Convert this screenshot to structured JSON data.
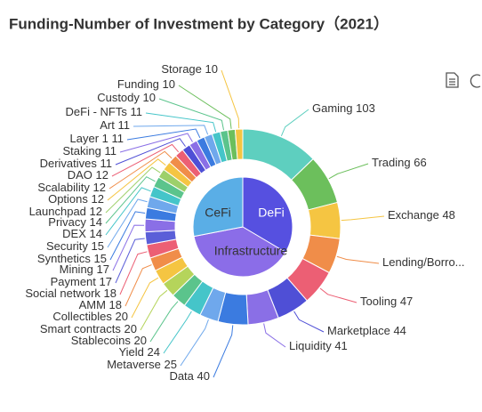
{
  "chart_data": [
    {
      "type": "donut",
      "title": "Funding-Number of Investment by Category（2021）",
      "categories": [
        "Gaming",
        "Trading",
        "Exchange",
        "Lending/Borro...",
        "Tooling",
        "Marketplace",
        "Liquidity",
        "Data",
        "Metaverse",
        "Yield",
        "Stablecoins",
        "Smart contracts",
        "Collectibles",
        "AMM",
        "Social network",
        "Payment",
        "Mining",
        "Synthetics",
        "Security",
        "DEX",
        "Privacy",
        "Launchpad",
        "Options",
        "Scalability",
        "DAO",
        "Derivatives",
        "Staking",
        "Layer 1",
        "Art",
        "DeFi - NFTs",
        "Custody",
        "Funding",
        "Storage"
      ],
      "values": [
        103,
        66,
        48,
        47,
        47,
        44,
        41,
        40,
        25,
        24,
        20,
        20,
        20,
        18,
        18,
        17,
        17,
        15,
        15,
        14,
        14,
        12,
        12,
        12,
        12,
        11,
        11,
        11,
        11,
        11,
        10,
        10,
        10
      ],
      "value_labels": [
        "103",
        "66",
        "48",
        null,
        "47",
        "44",
        "41",
        "40",
        "25",
        "24",
        "20",
        "20",
        "20",
        "18",
        "18",
        "17",
        "17",
        "15",
        "15",
        "14",
        "14",
        "12",
        "12",
        "12",
        "12",
        "11",
        "11",
        "11",
        "11",
        "11",
        "10",
        "10",
        "10"
      ],
      "colors": [
        "#5ecfbf",
        "#6cbf5c",
        "#f5c542",
        "#f08d49",
        "#ec5f74",
        "#4f4fd6",
        "#8a6fe6",
        "#3b7be0",
        "#6fa8ec",
        "#45c5c9",
        "#5bc48c",
        "#b5d45b",
        "#f5c542",
        "#f08d49",
        "#ec5f74",
        "#5b5fd8",
        "#8a6fe6",
        "#3b7be0",
        "#6fa8ec",
        "#45c5c9",
        "#5bc48c",
        "#9dd06a",
        "#f5c542",
        "#f08d49",
        "#ec5f74",
        "#4f4fd6",
        "#8a6fe6",
        "#3b7be0",
        "#6fa8ec",
        "#45c5c9",
        "#5bc48c",
        "#6cbf5c",
        "#f5c542"
      ]
    },
    {
      "type": "pie",
      "categories": [
        "DeFi",
        "Infrastructure",
        "CeFi"
      ],
      "values": [
        270,
        310,
        226
      ],
      "colors": [
        "#5650e0",
        "#8b6de8",
        "#5aaee6"
      ]
    }
  ]
}
